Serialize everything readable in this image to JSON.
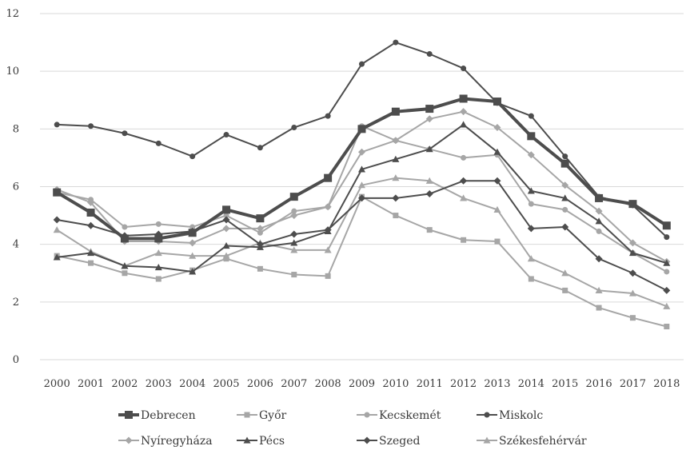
{
  "chart_data": {
    "type": "line",
    "title": "",
    "xlabel": "",
    "ylabel": "",
    "ylim": [
      0,
      12
    ],
    "yticks": [
      0,
      2,
      4,
      6,
      8,
      10,
      12
    ],
    "grid": "horizontal",
    "legend_position": "bottom",
    "x": [
      "2000",
      "2001",
      "2002",
      "2003",
      "2004",
      "2005",
      "2006",
      "2007",
      "2008",
      "2009",
      "2010",
      "2011",
      "2012",
      "2013",
      "2014",
      "2015",
      "2016",
      "2017",
      "2018"
    ],
    "series": [
      {
        "name": "Debrecen",
        "color": "#4d4d4d",
        "marker": "square",
        "width": 4,
        "values": [
          5.8,
          5.1,
          4.2,
          4.2,
          4.4,
          5.2,
          4.9,
          5.65,
          6.3,
          8.0,
          8.6,
          8.7,
          9.05,
          8.95,
          7.75,
          6.8,
          5.6,
          5.4,
          4.65
        ]
      },
      {
        "name": "Győr",
        "color": "#a6a6a6",
        "marker": "square",
        "width": 2,
        "values": [
          3.6,
          3.35,
          3.0,
          2.8,
          3.1,
          3.5,
          3.15,
          2.95,
          2.9,
          5.65,
          5.0,
          4.5,
          4.15,
          4.1,
          2.8,
          2.4,
          1.8,
          1.45,
          1.15
        ]
      },
      {
        "name": "Kecskemét",
        "color": "#a6a6a6",
        "marker": "circle",
        "width": 2,
        "values": [
          5.8,
          5.55,
          4.6,
          4.7,
          4.6,
          5.0,
          4.4,
          5.15,
          5.3,
          8.1,
          7.6,
          7.3,
          7.0,
          7.1,
          5.4,
          5.2,
          4.45,
          3.7,
          3.05
        ]
      },
      {
        "name": "Miskolc",
        "color": "#4d4d4d",
        "marker": "circle",
        "width": 2,
        "values": [
          8.15,
          8.1,
          7.85,
          7.5,
          7.05,
          7.8,
          7.35,
          8.05,
          8.45,
          10.25,
          11.0,
          10.6,
          10.1,
          8.9,
          8.45,
          7.05,
          5.65,
          5.35,
          4.25
        ]
      },
      {
        "name": "Nyíregyháza",
        "color": "#a6a6a6",
        "marker": "diamond",
        "width": 2,
        "values": [
          5.9,
          5.45,
          4.1,
          4.1,
          4.05,
          4.55,
          4.55,
          5.0,
          5.3,
          7.2,
          7.6,
          8.35,
          8.6,
          8.05,
          7.1,
          6.05,
          5.15,
          4.05,
          3.4
        ]
      },
      {
        "name": "Pécs",
        "color": "#4d4d4d",
        "marker": "triangle",
        "width": 2,
        "values": [
          3.55,
          3.7,
          3.25,
          3.2,
          3.05,
          3.95,
          3.9,
          4.05,
          4.45,
          6.6,
          6.95,
          7.3,
          8.15,
          7.2,
          5.85,
          5.6,
          4.8,
          3.7,
          3.35
        ]
      },
      {
        "name": "Szeged",
        "color": "#4d4d4d",
        "marker": "diamond",
        "width": 2,
        "values": [
          4.85,
          4.65,
          4.3,
          4.35,
          4.45,
          4.85,
          4.0,
          4.35,
          4.5,
          5.6,
          5.6,
          5.75,
          6.2,
          6.2,
          4.55,
          4.6,
          3.5,
          3.0,
          2.4
        ]
      },
      {
        "name": "Székesfehérvár",
        "color": "#a6a6a6",
        "marker": "triangle",
        "width": 2,
        "values": [
          4.5,
          3.75,
          3.25,
          3.7,
          3.6,
          3.6,
          4.05,
          3.8,
          3.8,
          6.05,
          6.3,
          6.2,
          5.6,
          5.2,
          3.5,
          3.0,
          2.4,
          2.3,
          1.85
        ]
      }
    ]
  }
}
